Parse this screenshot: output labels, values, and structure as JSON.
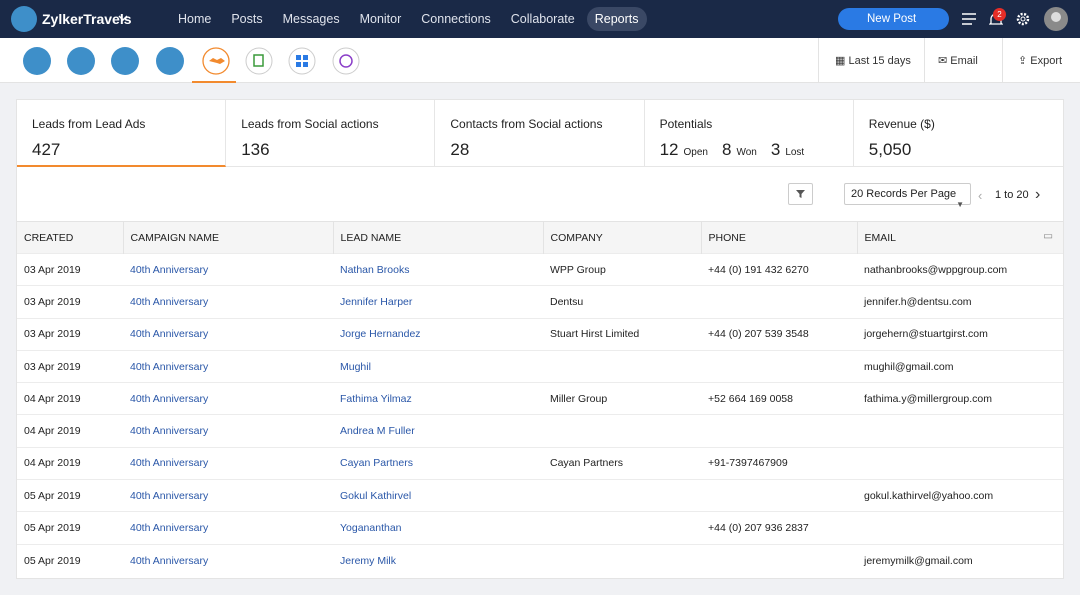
{
  "nav": {
    "brand": "ZylkerTravels",
    "items": [
      "Home",
      "Posts",
      "Messages",
      "Monitor",
      "Connections",
      "Collaborate",
      "Reports"
    ],
    "active": 6,
    "new_post": "New Post",
    "notifications": 2
  },
  "toolbar": {
    "range": "Last 15 days",
    "email": "Email",
    "export": "Export"
  },
  "stats": [
    {
      "label": "Leads from Lead Ads",
      "value": 427
    },
    {
      "label": "Leads from Social actions",
      "value": 136
    },
    {
      "label": "Contacts from Social actions",
      "value": 28
    },
    {
      "label": "Potentials",
      "parts": [
        {
          "value": 12,
          "label": "Open"
        },
        {
          "value": 8,
          "label": "Won"
        },
        {
          "value": 3,
          "label": "Lost"
        }
      ]
    },
    {
      "label": "Revenue ($)",
      "value": {
        "value": 5050,
        "label": "5,050"
      }
    }
  ],
  "active_stat": 0,
  "pagination": {
    "per_page": "20 Records Per Page",
    "range": "1 to 20"
  },
  "table": {
    "columns": [
      "CREATED",
      "CAMPAIGN NAME",
      "LEAD NAME",
      "COMPANY",
      "PHONE",
      "EMAIL"
    ],
    "rows": [
      [
        "03 Apr 2019",
        "40th Anniversary",
        "Nathan Brooks",
        "WPP Group",
        "+44 (0) 191 432 6270",
        "nathanbrooks@wppgroup.com"
      ],
      [
        "03 Apr 2019",
        "40th Anniversary",
        "Jennifer Harper",
        "Dentsu",
        null,
        "jennifer.h@dentsu.com"
      ],
      [
        "03 Apr 2019",
        "40th Anniversary",
        "Jorge Hernandez",
        "Stuart Hirst Limited",
        "+44 (0) 207 539 3548",
        "jorgehern@stuartgirst.com"
      ],
      [
        "03 Apr 2019",
        "40th Anniversary",
        "Mughil",
        null,
        null,
        "mughil@gmail.com"
      ],
      [
        "04 Apr 2019",
        "40th Anniversary",
        "Fathima Yilmaz",
        "Miller Group",
        "+52 664 169 0058",
        "fathima.y@millergroup.com"
      ],
      [
        "04 Apr 2019",
        "40th Anniversary",
        "Andrea M Fuller",
        null,
        null,
        null
      ],
      [
        "04 Apr 2019",
        "40th Anniversary",
        "Cayan Partners",
        "Cayan Partners",
        "+91-7397467909",
        null
      ],
      [
        "05 Apr 2019",
        "40th Anniversary",
        "Gokul Kathirvel",
        null,
        null,
        "gokul.kathirvel@yahoo.com"
      ],
      [
        "05 Apr 2019",
        "40th Anniversary",
        "Yogananthan",
        null,
        "+44 (0) 207 936 2837",
        null
      ],
      [
        "05 Apr 2019",
        "40th Anniversary",
        "Jeremy Milk",
        null,
        null,
        "jeremymilk@gmail.com"
      ]
    ]
  }
}
